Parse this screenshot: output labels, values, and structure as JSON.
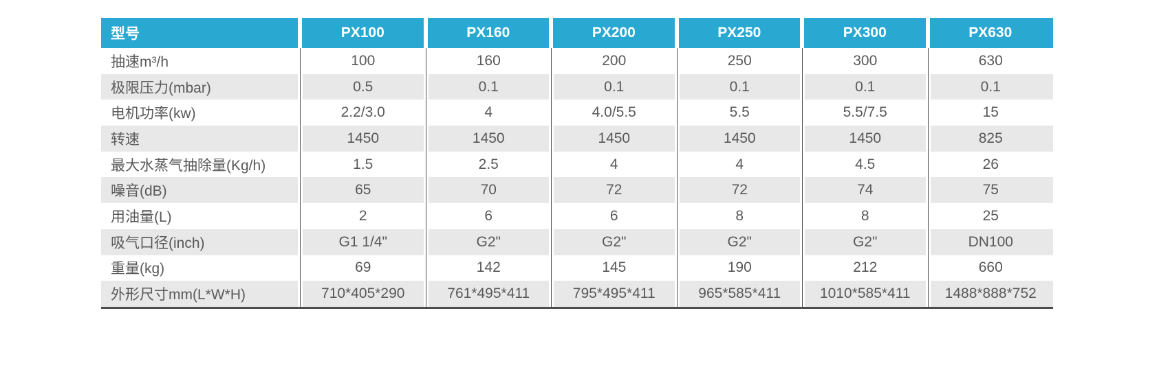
{
  "colors": {
    "header_bg": "#29a8d2",
    "header_text": "#ffffff",
    "row_alt_bg": "#e8e8e8",
    "body_text": "#595959",
    "line": "#4d4d4d",
    "page_bg": "#ffffff"
  },
  "table": {
    "header": {
      "model_label": "型号",
      "columns": [
        "PX100",
        "PX160",
        "PX200",
        "PX250",
        "PX300",
        "PX630"
      ]
    },
    "rows": [
      {
        "label": "抽速m³/h",
        "values": [
          "100",
          "160",
          "200",
          "250",
          "300",
          "630"
        ]
      },
      {
        "label": "极限压力(mbar)",
        "values": [
          "0.5",
          "0.1",
          "0.1",
          "0.1",
          "0.1",
          "0.1"
        ]
      },
      {
        "label": "电机功率(kw)",
        "values": [
          "2.2/3.0",
          "4",
          "4.0/5.5",
          "5.5",
          "5.5/7.5",
          "15"
        ]
      },
      {
        "label": "转速",
        "values": [
          "1450",
          "1450",
          "1450",
          "1450",
          "1450",
          "825"
        ]
      },
      {
        "label": "最大水蒸气抽除量(Kg/h)",
        "values": [
          "1.5",
          "2.5",
          "4",
          "4",
          "4.5",
          "26"
        ]
      },
      {
        "label": "噪音(dB)",
        "values": [
          "65",
          "70",
          "72",
          "72",
          "74",
          "75"
        ]
      },
      {
        "label": "用油量(L)",
        "values": [
          "2",
          "6",
          "6",
          "8",
          "8",
          "25"
        ]
      },
      {
        "label": "吸气口径(inch)",
        "values": [
          "G1 1/4\"",
          "G2\"",
          "G2\"",
          "G2\"",
          "G2\"",
          "DN100"
        ]
      },
      {
        "label": "重量(kg)",
        "values": [
          "69",
          "142",
          "145",
          "190",
          "212",
          "660"
        ]
      },
      {
        "label": "外形尺寸mm(L*W*H)",
        "values": [
          "710*405*290",
          "761*495*411",
          "795*495*411",
          "965*585*411",
          "1010*585*411",
          "1488*888*752"
        ]
      }
    ]
  }
}
